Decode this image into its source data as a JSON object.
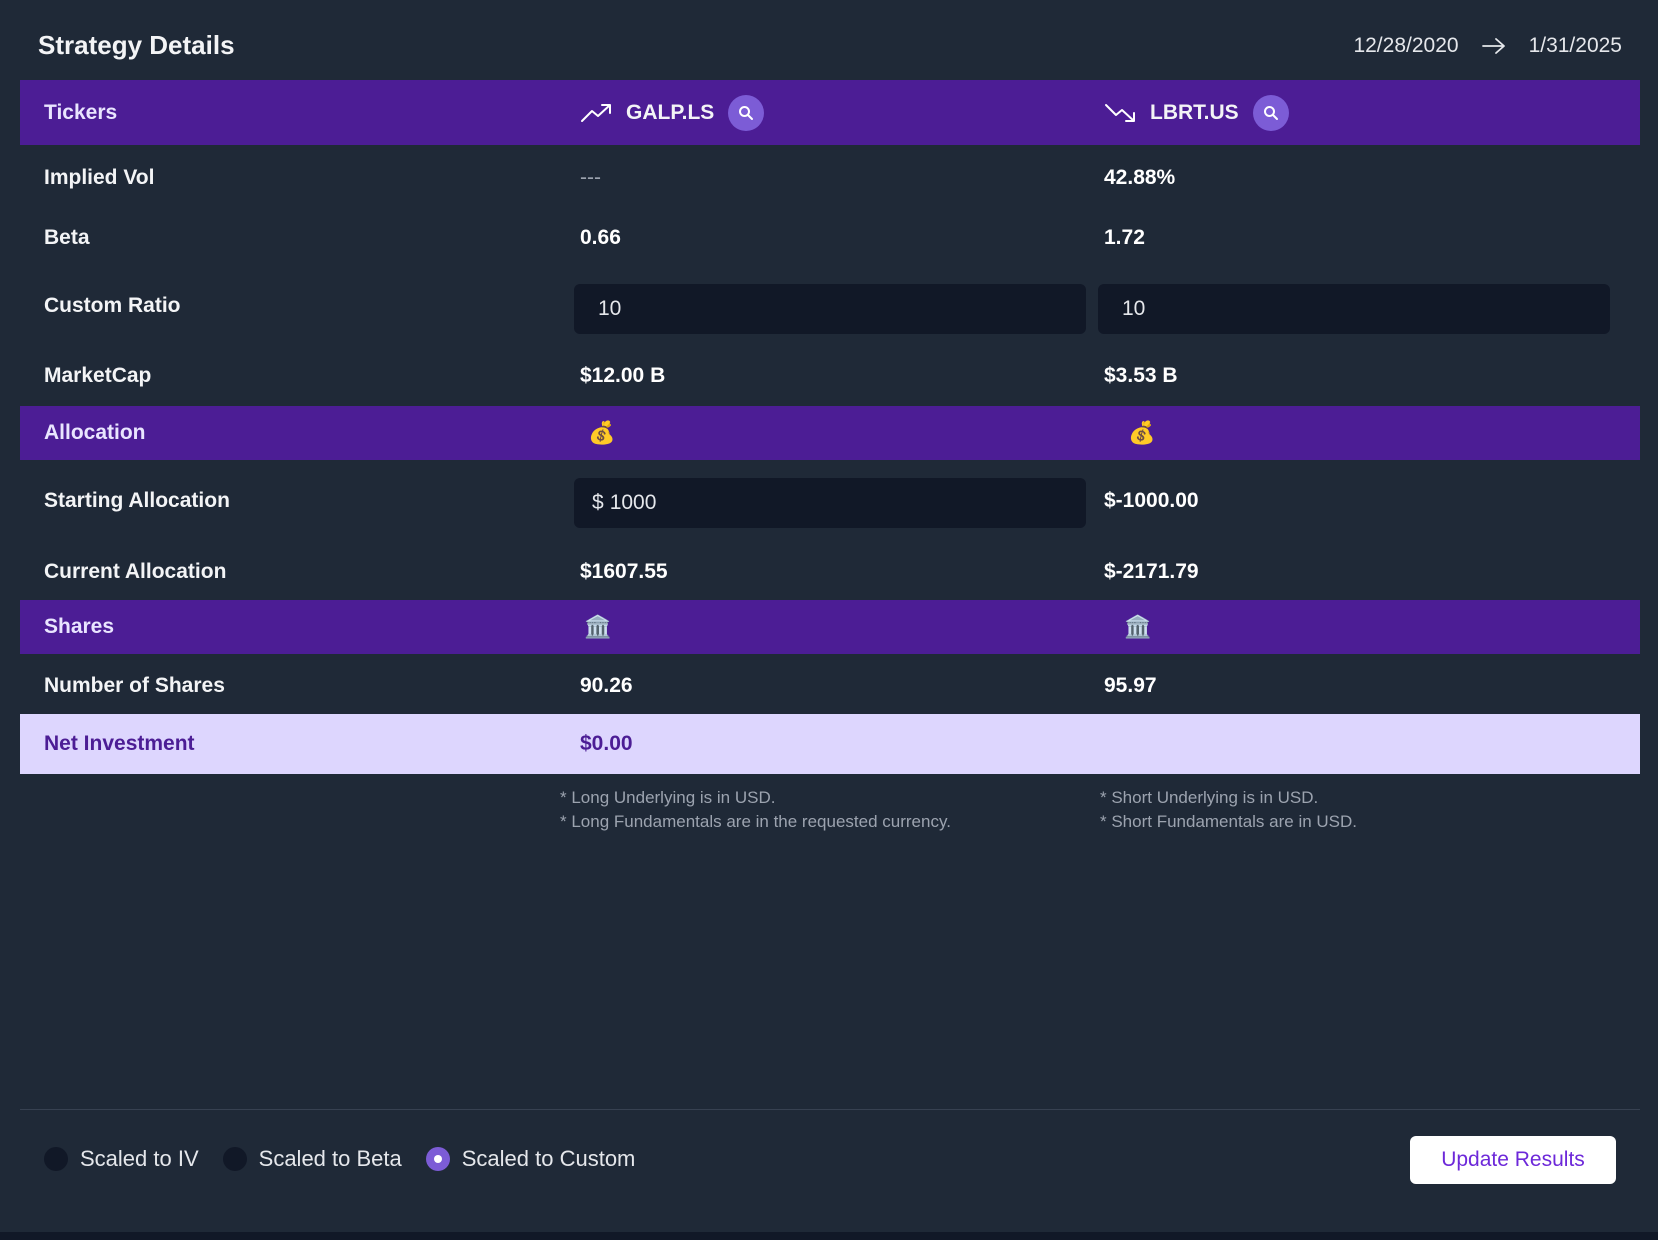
{
  "header": {
    "title": "Strategy Details",
    "start_date": "12/28/2020",
    "end_date": "1/31/2025"
  },
  "tickers": {
    "label": "Tickers",
    "long": {
      "symbol": "GALP.LS",
      "icon": "trending-up-icon"
    },
    "short": {
      "symbol": "LBRT.US",
      "icon": "trending-down-icon"
    }
  },
  "rows": {
    "implied_vol": {
      "label": "Implied Vol",
      "long": "---",
      "short": "42.88%"
    },
    "beta": {
      "label": "Beta",
      "long": "0.66",
      "short": "1.72"
    },
    "custom_ratio": {
      "label": "Custom Ratio",
      "long": "10",
      "short": "10"
    },
    "market_cap": {
      "label": "MarketCap",
      "long": "$12.00 B",
      "short": "$3.53 B"
    }
  },
  "allocation": {
    "label": "Allocation",
    "icon": "💰",
    "starting_label": "Starting Allocation",
    "starting_long_prefix": "$",
    "starting_long_value": "1000",
    "starting_short": "$-1000.00",
    "current_label": "Current Allocation",
    "current_long": "$1607.55",
    "current_short": "$-2171.79"
  },
  "shares": {
    "label": "Shares",
    "icon": "🏛️",
    "number_label": "Number of Shares",
    "long": "90.26",
    "short": "95.97"
  },
  "net_investment": {
    "label": "Net Investment",
    "value": "$0.00"
  },
  "notes": {
    "long_1": "* Long Underlying is in USD.",
    "long_2": "* Long Fundamentals are in the requested currency.",
    "short_1": "* Short Underlying is in USD.",
    "short_2": "* Short Fundamentals are in USD."
  },
  "scaling": {
    "options": [
      "Scaled to IV",
      "Scaled to Beta",
      "Scaled to Custom"
    ],
    "selected": "Scaled to Custom"
  },
  "update_button": "Update Results",
  "colors": {
    "background": "#1f2937",
    "band": "#4c1d95",
    "net_row": "#ddd6fe",
    "accent": "#7c5cd6",
    "input": "#111827"
  }
}
